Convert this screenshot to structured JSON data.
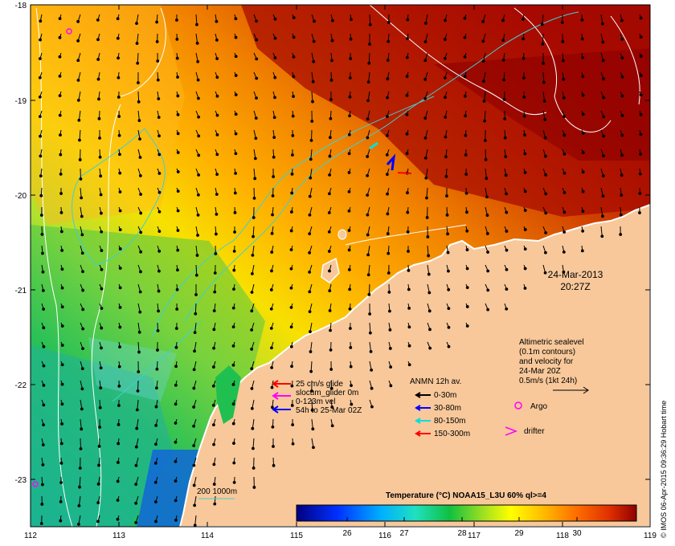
{
  "map": {
    "x_ticks": [
      "112",
      "113",
      "114",
      "115",
      "116",
      "117",
      "118",
      "119"
    ],
    "y_ticks": [
      "-18",
      "-19",
      "-20",
      "-21",
      "-22",
      "-23"
    ],
    "date": "24-Mar-2013",
    "time": "20:27Z",
    "altimetry_note": [
      "Altimetric sealevel",
      "(0.1m contours)",
      "and velocity for",
      "24-Mar 20Z",
      "0.5m/s (1kt 24h)"
    ],
    "argo_label": "Argo",
    "drifter_label": "drifter",
    "glider_legend": [
      "25 cm/s glide",
      "slocum_glider 0m",
      "0-123m vel",
      "54h to 25-Mar 02Z"
    ],
    "anmn_title": "ANMN 12h av.",
    "anmn_legend": [
      "0-30m",
      "30-80m",
      "80-150m",
      "150-300m"
    ],
    "isobath_label": "200  1000m",
    "colorbar": {
      "title": "Temperature (°C) NOAA15_L3U 60% ql>=4",
      "ticks": [
        "26",
        "27",
        "28",
        "29",
        "30"
      ]
    },
    "credit": "© IMOS 06-Apr-2015 09:36:29 Hobart time",
    "colors": {
      "land": "#f8c89a",
      "glider_red": "#ff0000",
      "glider_magenta": "#ff00ff",
      "glider_blue": "#0000ff",
      "anmn_black": "#000000",
      "anmn_blue": "#0000ff",
      "anmn_cyan": "#00e0e0",
      "anmn_red": "#ff0000",
      "argo": "#ff00ff",
      "drifter": "#ff00ff",
      "isobath": "#40d0d0",
      "contour": "#ffffff"
    }
  }
}
